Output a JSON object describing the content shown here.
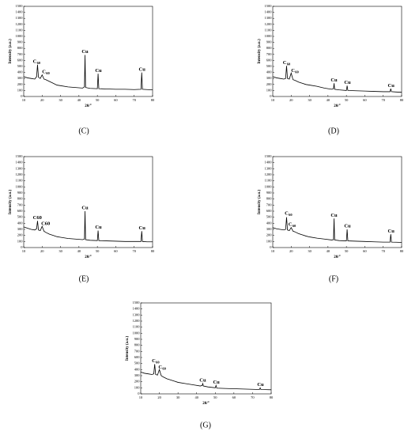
{
  "chart_data": [
    {
      "type": "line",
      "caption": "(C)",
      "xlabel": "2θ/°",
      "ylabel": "Intensity (a.u.)",
      "color": "#000000",
      "xlim": [
        10,
        80
      ],
      "xticks": [
        10,
        20,
        30,
        40,
        50,
        60,
        70,
        80
      ],
      "ylim": [
        0,
        1500
      ],
      "yticks": [
        0,
        100,
        200,
        300,
        400,
        500,
        600,
        700,
        800,
        900,
        1000,
        1100,
        1200,
        1300,
        1400,
        1500
      ],
      "x": [
        10,
        12,
        14,
        16,
        17,
        17.5,
        18,
        19,
        20,
        21,
        22,
        24,
        26,
        28,
        30,
        34,
        38,
        42,
        43,
        43.3,
        43.6,
        46,
        50,
        50.4,
        50.8,
        55,
        60,
        65,
        70,
        73.7,
        74.1,
        74.5,
        77,
        80
      ],
      "values": [
        330,
        310,
        300,
        290,
        330,
        530,
        320,
        300,
        360,
        290,
        280,
        250,
        220,
        190,
        180,
        160,
        150,
        140,
        160,
        690,
        150,
        135,
        130,
        380,
        130,
        125,
        120,
        120,
        115,
        120,
        400,
        120,
        115,
        110
      ],
      "annotations": [
        {
          "text": "C",
          "sub": "60",
          "x": 15,
          "y": 580
        },
        {
          "text": "C",
          "sub": "60",
          "x": 20,
          "y": 410
        },
        {
          "text": "Cu",
          "x": 41.5,
          "y": 740
        },
        {
          "text": "Cu",
          "x": 48.8,
          "y": 430
        },
        {
          "text": "Cu",
          "x": 72.5,
          "y": 450
        }
      ]
    },
    {
      "type": "line",
      "caption": "(D)",
      "xlabel": "2θ/°",
      "ylabel": "Intensity (a.u.)",
      "color": "#000000",
      "xlim": [
        10,
        80
      ],
      "xticks": [
        10,
        20,
        30,
        40,
        50,
        60,
        70,
        80
      ],
      "ylim": [
        0,
        1500
      ],
      "yticks": [
        0,
        100,
        200,
        300,
        400,
        500,
        600,
        700,
        800,
        900,
        1000,
        1100,
        1200,
        1300,
        1400,
        1500
      ],
      "x": [
        10,
        12,
        14,
        16,
        17,
        17.5,
        18,
        19,
        20,
        21,
        22,
        24,
        26,
        28,
        30,
        34,
        38,
        42,
        43,
        43.3,
        43.6,
        46,
        50,
        50.4,
        50.8,
        55,
        60,
        65,
        70,
        73.7,
        74.1,
        74.5,
        77,
        80
      ],
      "values": [
        330,
        310,
        300,
        290,
        300,
        510,
        300,
        290,
        390,
        280,
        270,
        240,
        220,
        200,
        190,
        170,
        140,
        120,
        130,
        220,
        120,
        110,
        100,
        180,
        100,
        95,
        90,
        85,
        80,
        80,
        130,
        80,
        75,
        70
      ],
      "annotations": [
        {
          "text": "C",
          "sub": "60",
          "x": 15.5,
          "y": 560
        },
        {
          "text": "C",
          "sub": "60",
          "x": 20,
          "y": 430
        },
        {
          "text": "Cu",
          "x": 41.5,
          "y": 270
        },
        {
          "text": "Cu",
          "x": 48.8,
          "y": 230
        },
        {
          "text": "Cu",
          "x": 72.5,
          "y": 180
        }
      ]
    },
    {
      "type": "line",
      "caption": "(E)",
      "xlabel": "2θ/°",
      "ylabel": "Intensity (a.u.)",
      "color": "#000000",
      "xlim": [
        10,
        80
      ],
      "xticks": [
        10,
        20,
        30,
        40,
        50,
        60,
        70,
        80
      ],
      "ylim": [
        0,
        1500
      ],
      "yticks": [
        0,
        100,
        200,
        300,
        400,
        500,
        600,
        700,
        800,
        900,
        1000,
        1100,
        1200,
        1300,
        1400,
        1500
      ],
      "x": [
        10,
        12,
        14,
        16,
        17,
        17.5,
        18,
        19,
        20,
        21,
        22,
        24,
        26,
        28,
        30,
        34,
        38,
        42,
        43,
        43.3,
        43.6,
        46,
        50,
        50.4,
        50.8,
        55,
        60,
        65,
        70,
        73.7,
        74.1,
        74.5,
        77,
        80
      ],
      "values": [
        340,
        320,
        300,
        290,
        310,
        440,
        290,
        280,
        350,
        270,
        250,
        220,
        200,
        180,
        170,
        150,
        140,
        130,
        140,
        600,
        130,
        120,
        115,
        280,
        115,
        110,
        105,
        100,
        100,
        100,
        270,
        100,
        95,
        95
      ],
      "annotations": [
        {
          "text": "C60",
          "x": 15,
          "y": 490
        },
        {
          "text": "C60",
          "x": 19.5,
          "y": 390
        },
        {
          "text": "Cu",
          "x": 41.5,
          "y": 650
        },
        {
          "text": "Cu",
          "x": 48.8,
          "y": 330
        },
        {
          "text": "Cu",
          "x": 72.5,
          "y": 320
        }
      ]
    },
    {
      "type": "line",
      "caption": "(F)",
      "xlabel": "2θ/°",
      "ylabel": "Intensity (a.u.)",
      "color": "#000000",
      "xlim": [
        10,
        80
      ],
      "xticks": [
        10,
        20,
        30,
        40,
        50,
        60,
        70,
        80
      ],
      "ylim": [
        0,
        1500
      ],
      "yticks": [
        0,
        100,
        200,
        300,
        400,
        500,
        600,
        700,
        800,
        900,
        1000,
        1100,
        1200,
        1300,
        1400,
        1500
      ],
      "x": [
        10,
        12,
        14,
        16,
        17,
        17.5,
        18,
        19,
        20,
        21,
        22,
        24,
        26,
        28,
        30,
        34,
        38,
        42,
        43,
        43.3,
        43.6,
        46,
        50,
        50.4,
        50.8,
        55,
        60,
        65,
        70,
        73.7,
        74.1,
        74.5,
        77,
        80
      ],
      "values": [
        330,
        310,
        300,
        290,
        300,
        500,
        290,
        280,
        330,
        270,
        260,
        230,
        210,
        190,
        175,
        155,
        140,
        125,
        130,
        480,
        125,
        115,
        110,
        300,
        110,
        105,
        100,
        95,
        90,
        90,
        220,
        90,
        88,
        85
      ],
      "annotations": [
        {
          "text": "C",
          "sub": "60",
          "x": 16.5,
          "y": 560
        },
        {
          "text": "C",
          "sub": "60",
          "x": 18.5,
          "y": 380
        },
        {
          "text": "Cu",
          "x": 41.5,
          "y": 530
        },
        {
          "text": "Cu",
          "x": 48.8,
          "y": 350
        },
        {
          "text": "Cu",
          "x": 72.5,
          "y": 270
        }
      ]
    },
    {
      "type": "line",
      "caption": "(G)",
      "xlabel": "2θ/°",
      "ylabel": "Intensity (a.u.)",
      "color": "#000000",
      "xlim": [
        10,
        80
      ],
      "xticks": [
        10,
        20,
        30,
        40,
        50,
        60,
        70,
        80
      ],
      "ylim": [
        0,
        1500
      ],
      "yticks": [
        0,
        100,
        200,
        300,
        400,
        500,
        600,
        700,
        800,
        900,
        1000,
        1100,
        1200,
        1300,
        1400,
        1500
      ],
      "x": [
        10,
        12,
        14,
        16,
        17,
        17.5,
        18,
        19,
        20,
        21,
        22,
        24,
        26,
        28,
        30,
        34,
        38,
        42,
        43,
        43.3,
        43.6,
        46,
        50,
        50.4,
        50.8,
        55,
        60,
        65,
        70,
        73.7,
        74.1,
        74.5,
        77,
        80
      ],
      "values": [
        360,
        340,
        330,
        320,
        330,
        490,
        320,
        310,
        400,
        300,
        280,
        250,
        230,
        210,
        190,
        170,
        150,
        130,
        140,
        170,
        130,
        115,
        100,
        140,
        95,
        90,
        85,
        80,
        75,
        72,
        100,
        72,
        70,
        68
      ],
      "annotations": [
        {
          "text": "C",
          "sub": "60",
          "x": 16,
          "y": 540
        },
        {
          "text": "C",
          "sub": "60",
          "x": 19.5,
          "y": 440
        },
        {
          "text": "Cu",
          "x": 41.5,
          "y": 220
        },
        {
          "text": "Cu",
          "x": 48.8,
          "y": 190
        },
        {
          "text": "Cu",
          "x": 72.5,
          "y": 150
        }
      ]
    }
  ]
}
